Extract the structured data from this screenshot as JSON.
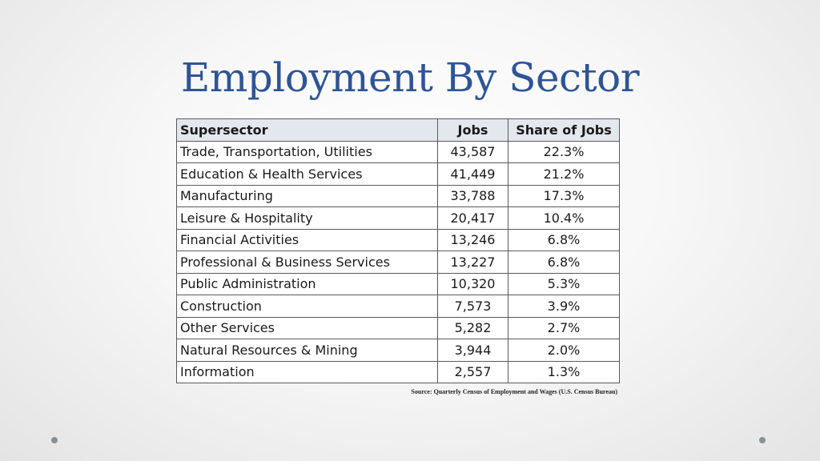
{
  "title": "Employment By Sector",
  "table": {
    "headers": {
      "sector": "Supersector",
      "jobs": "Jobs",
      "share": "Share of Jobs"
    },
    "rows": [
      {
        "sector": "Trade, Transportation,  Utilities",
        "jobs": "43,587",
        "share": "22.3%"
      },
      {
        "sector": "Education & Health Services",
        "jobs": "41,449",
        "share": "21.2%"
      },
      {
        "sector": "Manufacturing",
        "jobs": "33,788",
        "share": "17.3%"
      },
      {
        "sector": "Leisure & Hospitality",
        "jobs": "20,417",
        "share": "10.4%"
      },
      {
        "sector": "Financial Activities",
        "jobs": "13,246",
        "share": "6.8%"
      },
      {
        "sector": "Professional & Business Services",
        "jobs": "13,227",
        "share": "6.8%"
      },
      {
        "sector": "Public Administration",
        "jobs": "10,320",
        "share": "5.3%"
      },
      {
        "sector": "Construction",
        "jobs": "7,573",
        "share": "3.9%"
      },
      {
        "sector": "Other Services",
        "jobs": "5,282",
        "share": "2.7%"
      },
      {
        "sector": "Natural Resources & Mining",
        "jobs": "3,944",
        "share": "2.0%"
      },
      {
        "sector": "Information",
        "jobs": "2,557",
        "share": "1.3%"
      }
    ]
  },
  "source": "Source: Quarterly Census of Employment and Wages (U.S. Census Bureau)",
  "colors": {
    "title": "#2f5496",
    "header_bg": "#e3e7ee",
    "border": "#5a5a5a",
    "nav_dot": "#8a8f96"
  }
}
